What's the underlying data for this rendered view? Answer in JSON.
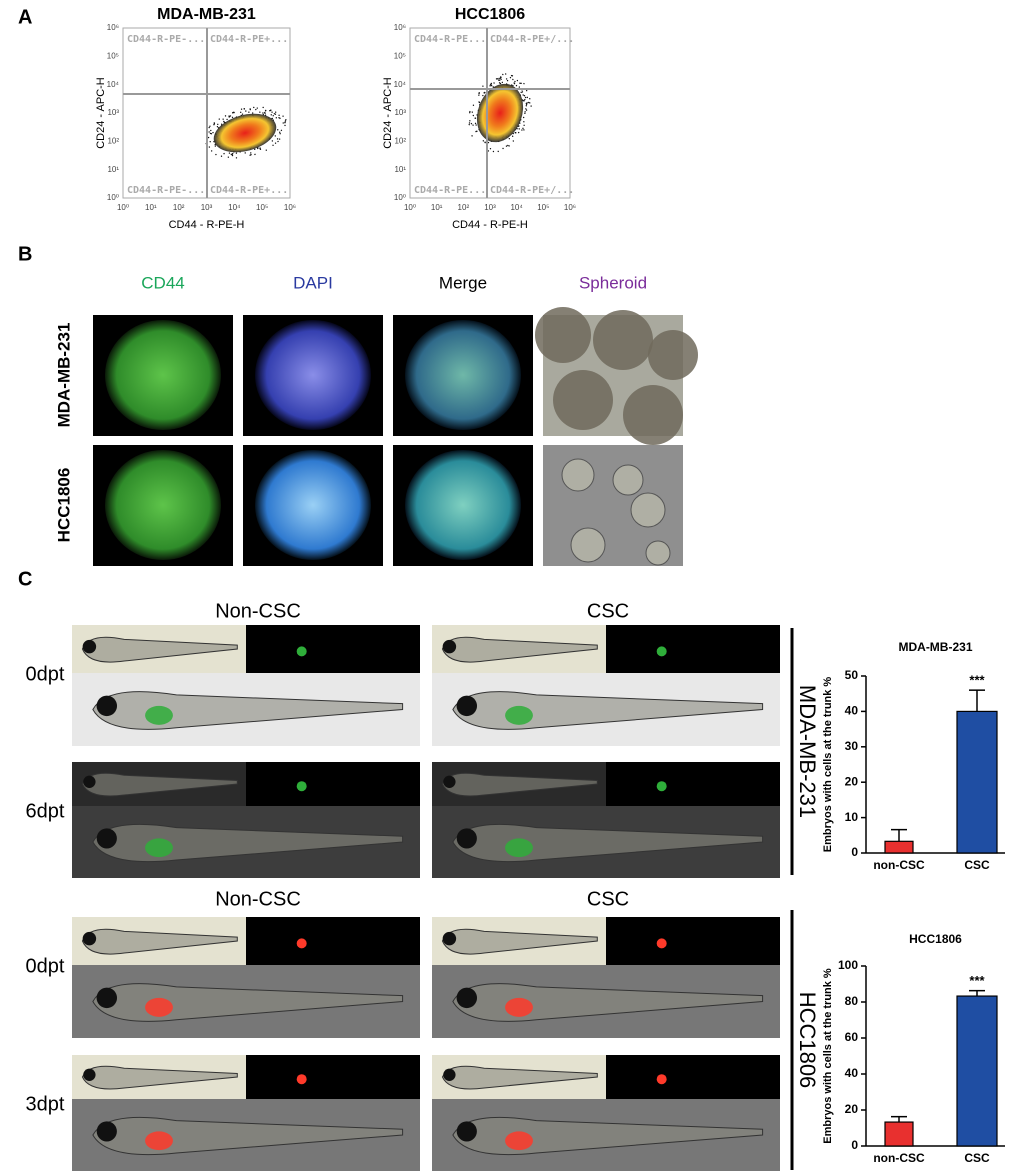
{
  "panel_labels": [
    "A",
    "B",
    "C"
  ],
  "flow_plots": [
    {
      "title": "MDA-MB-231",
      "x_label": "CD44 - R-PE-H",
      "y_label": "CD24 - APC-H",
      "ticks": [
        "10⁰",
        "10¹",
        "10²",
        "10³",
        "10⁴",
        "10⁵",
        "10⁶"
      ],
      "quadrants": [
        "CD44-R-PE-...",
        "CD44-R-PE+...",
        "CD44-R-PE-...",
        "CD44-R-PE+..."
      ]
    },
    {
      "title": "HCC1806",
      "x_label": "CD44 - R-PE-H",
      "y_label": "CD24 - APC-H",
      "ticks": [
        "10⁰",
        "10¹",
        "10²",
        "10³",
        "10⁴",
        "10⁵",
        "10⁶"
      ],
      "quadrants": [
        "CD44-R-PE...",
        "CD44-R-PE+/...",
        "CD44-R-PE...",
        "CD44-R-PE+/..."
      ]
    }
  ],
  "staining": {
    "columns": [
      "CD44",
      "DAPI",
      "Merge",
      "Spheroid"
    ],
    "rows": [
      "MDA-MB-231",
      "HCC1806"
    ]
  },
  "zebrafish": {
    "groups": [
      {
        "line": "MDA-MB-231",
        "columns": [
          "Non-CSC",
          "CSC"
        ],
        "timepoints": [
          "0dpt",
          "6dpt"
        ]
      },
      {
        "line": "HCC1806",
        "columns": [
          "Non-CSC",
          "CSC"
        ],
        "timepoints": [
          "0dpt",
          "3dpt"
        ]
      }
    ]
  },
  "chart_data": [
    {
      "type": "bar",
      "title": "MDA-MB-231",
      "y_label": "Embryos with cells at the trunk %",
      "categories": [
        "non-CSC",
        "CSC"
      ],
      "values": [
        3.3,
        40
      ],
      "errors": [
        3.3,
        6
      ],
      "colors": [
        "#e8302f",
        "#1f4ea3"
      ],
      "ylim": [
        0,
        50
      ],
      "yticks": [
        0,
        10,
        20,
        30,
        40,
        50
      ],
      "annotation": "***"
    },
    {
      "type": "bar",
      "title": "HCC1806",
      "y_label": "Embryos with cells at the trunk %",
      "categories": [
        "non-CSC",
        "CSC"
      ],
      "values": [
        13.3,
        83.3
      ],
      "errors": [
        3,
        3
      ],
      "colors": [
        "#e8302f",
        "#1f4ea3"
      ],
      "ylim": [
        0,
        100
      ],
      "yticks": [
        0,
        20,
        40,
        60,
        80,
        100
      ],
      "annotation": "***"
    }
  ]
}
